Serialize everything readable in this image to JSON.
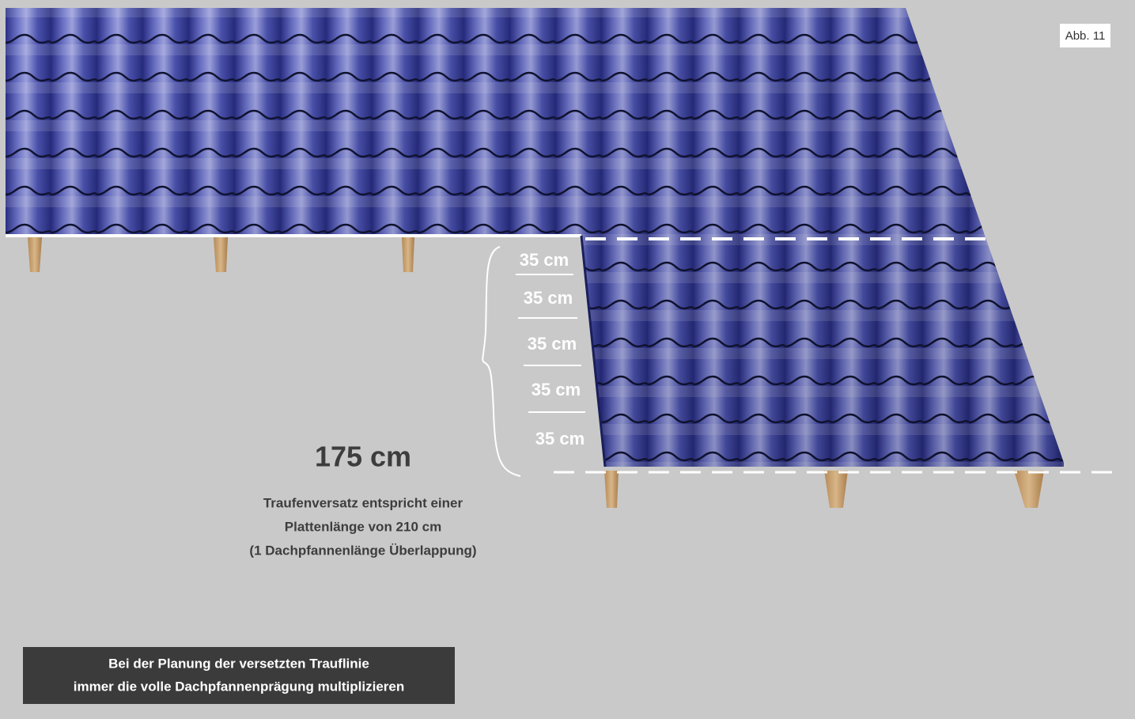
{
  "figure_label": "Abb. 11",
  "segments": [
    "35 cm",
    "35 cm",
    "35 cm",
    "35 cm",
    "35 cm"
  ],
  "total": "175 cm",
  "description": [
    "Traufenversatz entspricht einer",
    "Plattenlänge von 210 cm",
    "(1 Dachpfannenlänge Überlappung)"
  ],
  "note": [
    "Bei der Planung der versetzten Trauflinie",
    "immer die volle Dachpfannenprägung multiplizieren"
  ]
}
